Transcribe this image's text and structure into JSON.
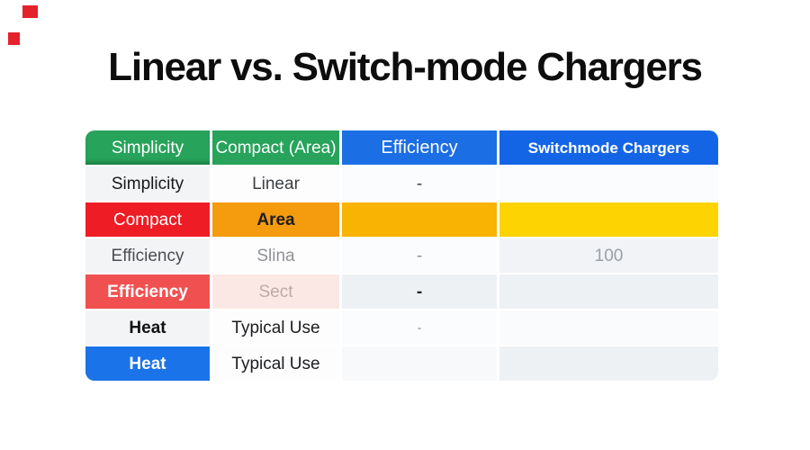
{
  "title": "Linear vs. Switch-mode Chargers",
  "markers": [
    {
      "name": "red-marker-1",
      "color": "#e4222b"
    },
    {
      "name": "red-marker-2",
      "color": "#e4222b"
    }
  ],
  "table": {
    "header": [
      {
        "text": "Simplicity",
        "bg": "#27a35b",
        "color": "#ffffff",
        "bold": false
      },
      {
        "text": "Compact (Area)",
        "bg": "#27a35b",
        "color": "#ffffff",
        "bold": false
      },
      {
        "text": "Efficiency",
        "bg": "#1b6ee4",
        "color": "#ffffff",
        "bold": false
      },
      {
        "text": "Switchmode Chargers",
        "bg": "#1465e6",
        "color": "#ffffff",
        "bold": true
      }
    ],
    "rows": [
      [
        {
          "text": "Simplicity",
          "bg": "#f3f4f6",
          "color": "#16181b",
          "bold": false
        },
        {
          "text": "Linear",
          "bg": "#fdfdfe",
          "color": "#3c4043",
          "bold": false
        },
        {
          "text": "-",
          "bg": "#fbfcfd",
          "color": "#3c4043",
          "bold": false
        },
        {
          "text": "",
          "bg": "#fbfcfd",
          "color": "#3c4043",
          "bold": false
        }
      ],
      [
        {
          "text": "Compact",
          "bg": "#ee1c24",
          "color": "#ffffff",
          "bold": false
        },
        {
          "text": "Area",
          "bg": "#f59b0e",
          "color": "#1d1d1d",
          "bold": true
        },
        {
          "text": "",
          "bg": "#f8b303",
          "color": "#1d1d1d",
          "bold": false
        },
        {
          "text": "",
          "bg": "#fdd402",
          "color": "#1d1d1d",
          "bold": false
        }
      ],
      [
        {
          "text": "Efficiency",
          "bg": "#f3f4f6",
          "color": "#4a4d52",
          "bold": false
        },
        {
          "text": "Slina",
          "bg": "#fdfdfe",
          "color": "#8f9296",
          "bold": false
        },
        {
          "text": "-",
          "bg": "#fbfcfd",
          "color": "#8f9296",
          "bold": false
        },
        {
          "text": "100",
          "bg": "#f1f3f6",
          "color": "#9aa0a6",
          "bold": false
        }
      ],
      [
        {
          "text": "Efficiency",
          "bg": "#f05150",
          "color": "#ffffff",
          "bold": true
        },
        {
          "text": "Sect",
          "bg": "#fbe8e4",
          "color": "#bcaaa6",
          "bold": false
        },
        {
          "text": "-",
          "bg": "#eef1f4",
          "color": "#202124",
          "bold": true
        },
        {
          "text": "",
          "bg": "#eef1f4",
          "color": "#202124",
          "bold": false
        }
      ],
      [
        {
          "text": "Heat",
          "bg": "#f3f4f6",
          "color": "#111111",
          "bold": true
        },
        {
          "text": "Typical Use",
          "bg": "#fdfdfe",
          "color": "#1b1d1f",
          "bold": false
        },
        {
          "text": "-",
          "bg": "#fbfcfd",
          "color": "#5f6368",
          "bold": false,
          "small": true
        },
        {
          "text": "",
          "bg": "#fafbfc",
          "color": "#5f6368",
          "bold": false
        }
      ],
      [
        {
          "text": "Heat",
          "bg": "#1a73e8",
          "color": "#ffffff",
          "bold": true
        },
        {
          "text": "Typical Use",
          "bg": "#fdfdfe",
          "color": "#1b1d1f",
          "bold": false
        },
        {
          "text": "",
          "bg": "#f7f9fb",
          "color": "#1b1d1f",
          "bold": false
        },
        {
          "text": "",
          "bg": "#eef1f4",
          "color": "#1b1d1f",
          "bold": false
        }
      ]
    ]
  }
}
